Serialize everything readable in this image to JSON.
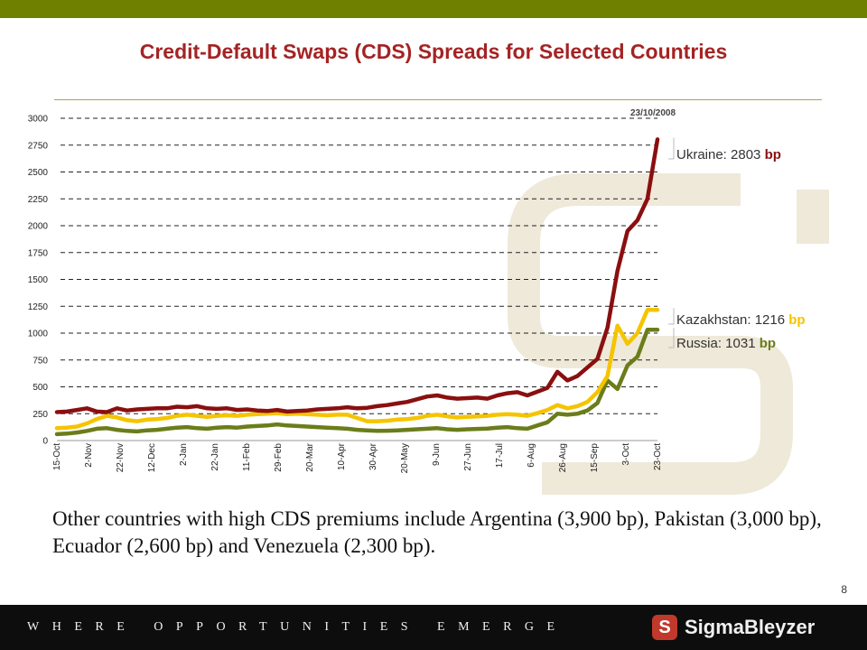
{
  "page": {
    "title": "Credit-Default Swaps (CDS) Spreads for Selected Countries",
    "body_text": "Other countries with high CDS premiums include Argentina (3,900 bp), Pakistan (3,000 bp), Ecuador (2,600 bp) and Venezuela (2,300 bp).",
    "page_number": "8",
    "footer_tagline": "WHERE OPPORTUNITIES EMERGE",
    "logo_text": "SigmaBleyzer",
    "logo_mark": "S",
    "colors": {
      "top_bar": "#6f7f00",
      "footer": "#0d0d0d",
      "title": "#a52323"
    }
  },
  "chart_data": {
    "type": "line",
    "title": "",
    "xlabel": "",
    "ylabel": "",
    "ylim": [
      0,
      3000
    ],
    "yticks": [
      0,
      250,
      500,
      750,
      1000,
      1250,
      1500,
      1750,
      2000,
      2250,
      2500,
      2750,
      3000
    ],
    "x_tick_labels": [
      "15-Oct",
      "2-Nov",
      "22-Nov",
      "12-Dec",
      "2-Jan",
      "22-Jan",
      "11-Feb",
      "29-Feb",
      "20-Mar",
      "10-Apr",
      "30-Apr",
      "20-May",
      "9-Jun",
      "27-Jun",
      "17-Jul",
      "6-Aug",
      "26-Aug",
      "15-Sep",
      "3-Oct",
      "23-Oct"
    ],
    "grid": "horizontal dashed",
    "annotation_date": "23/10/2008",
    "series": [
      {
        "name": "Ukraine",
        "color": "#8b0f0f",
        "end_label_prefix": "Ukraine: ",
        "end_label_value": "2803",
        "end_label_unit": " bp",
        "values": [
          265,
          270,
          285,
          300,
          270,
          265,
          300,
          280,
          290,
          295,
          300,
          300,
          315,
          310,
          320,
          300,
          295,
          300,
          285,
          290,
          280,
          275,
          285,
          270,
          275,
          280,
          290,
          295,
          300,
          310,
          300,
          305,
          320,
          330,
          345,
          360,
          385,
          410,
          420,
          400,
          390,
          395,
          400,
          390,
          420,
          440,
          450,
          420,
          455,
          490,
          640,
          560,
          600,
          680,
          760,
          1050,
          1580,
          1950,
          2050,
          2250,
          2803
        ]
      },
      {
        "name": "Kazakhstan",
        "color": "#f5c400",
        "end_label_prefix": "Kazakhstan: ",
        "end_label_value": "1216",
        "end_label_unit": " bp",
        "values": [
          115,
          120,
          130,
          160,
          200,
          230,
          215,
          190,
          180,
          195,
          200,
          210,
          230,
          240,
          230,
          220,
          230,
          235,
          230,
          240,
          245,
          250,
          255,
          245,
          250,
          245,
          240,
          235,
          240,
          240,
          210,
          180,
          180,
          185,
          195,
          200,
          210,
          230,
          240,
          225,
          215,
          220,
          225,
          230,
          240,
          245,
          240,
          230,
          255,
          285,
          330,
          300,
          320,
          360,
          450,
          600,
          1070,
          900,
          1000,
          1216,
          1216
        ]
      },
      {
        "name": "Russia",
        "color": "#6b7d1a",
        "end_label_prefix": "Russia: ",
        "end_label_value": "1031",
        "end_label_unit": " bp",
        "values": [
          60,
          65,
          75,
          90,
          110,
          115,
          100,
          90,
          85,
          95,
          100,
          110,
          120,
          125,
          115,
          110,
          120,
          125,
          120,
          130,
          135,
          140,
          150,
          140,
          135,
          130,
          125,
          120,
          115,
          110,
          100,
          95,
          90,
          92,
          95,
          100,
          105,
          110,
          115,
          105,
          100,
          105,
          108,
          112,
          120,
          125,
          115,
          110,
          140,
          170,
          250,
          240,
          250,
          280,
          350,
          560,
          480,
          700,
          780,
          1031,
          1031
        ]
      }
    ]
  }
}
